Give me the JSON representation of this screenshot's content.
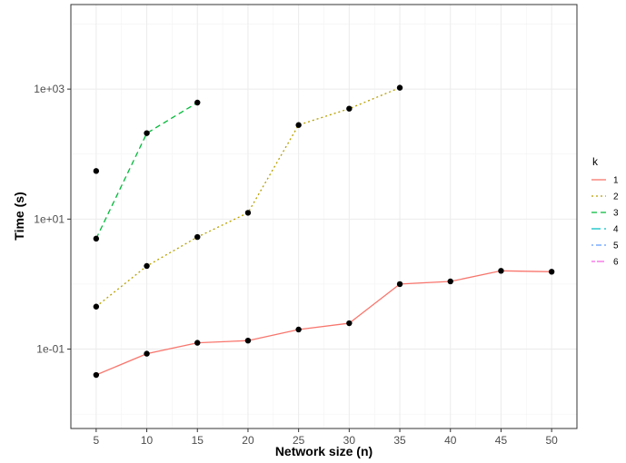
{
  "chart_data": {
    "type": "line",
    "xlabel": "Network size (n)",
    "ylabel": "Time (s)",
    "x_ticks": [
      5,
      10,
      15,
      20,
      25,
      30,
      35,
      40,
      45,
      50
    ],
    "xlim": [
      2.5,
      52.5
    ],
    "y_scale": "log10",
    "y_ticks": [
      0.1,
      10,
      1000
    ],
    "y_tick_labels": [
      "1e-01",
      "1e+01",
      "1e+03"
    ],
    "ylim": [
      0.006,
      20000
    ],
    "grid": true,
    "legend": {
      "title": "k",
      "position": "right",
      "entries": [
        "1",
        "2",
        "3",
        "4",
        "5",
        "6"
      ]
    },
    "series": [
      {
        "name": "1",
        "color": "#F8766D",
        "dash": "solid",
        "points": [
          [
            5,
            0.04
          ],
          [
            10,
            0.085
          ],
          [
            15,
            0.125
          ],
          [
            20,
            0.135
          ],
          [
            25,
            0.2
          ],
          [
            30,
            0.25
          ],
          [
            35,
            1.0
          ],
          [
            40,
            1.1
          ],
          [
            45,
            1.6
          ],
          [
            50,
            1.55
          ]
        ]
      },
      {
        "name": "2",
        "color": "#B79F00",
        "dash": "dotted",
        "points": [
          [
            5,
            0.45
          ],
          [
            10,
            1.9
          ],
          [
            15,
            5.3
          ],
          [
            20,
            12.5
          ],
          [
            25,
            280
          ],
          [
            30,
            500
          ],
          [
            35,
            1050
          ]
        ]
      },
      {
        "name": "3",
        "color": "#00BA38",
        "dash": "dashed",
        "points": [
          [
            5,
            5.0
          ],
          [
            10,
            210
          ],
          [
            15,
            620
          ]
        ]
      },
      {
        "name": "4",
        "color": "#00BFC4",
        "dash": "longdash",
        "points": []
      },
      {
        "name": "5",
        "color": "#619CFF",
        "dash": "dotdash",
        "points": []
      },
      {
        "name": "6",
        "color": "#F564E3",
        "dash": "twodash",
        "points": [
          [
            5,
            55
          ]
        ]
      }
    ]
  }
}
